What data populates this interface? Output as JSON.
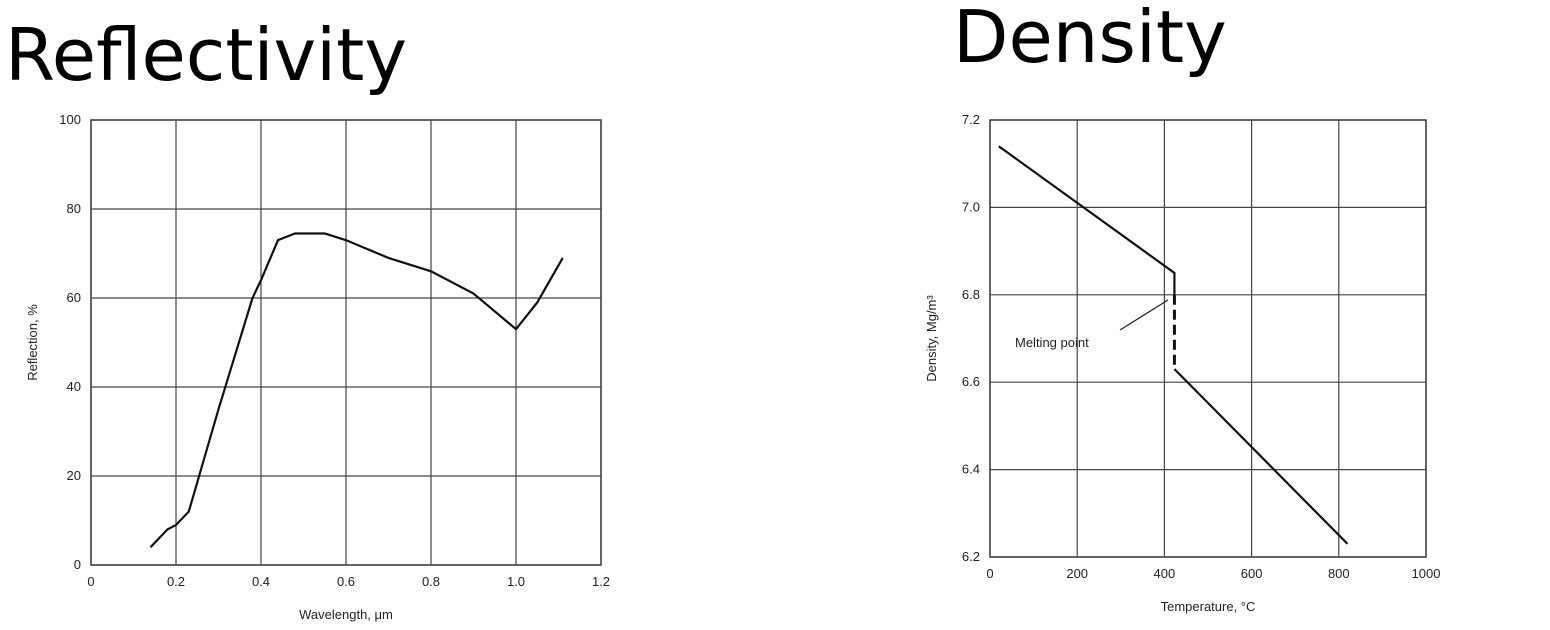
{
  "chart_data": [
    {
      "type": "line",
      "title": "Reflectivity",
      "xlabel": "Wavelength, μm",
      "ylabel": "Reflection, %",
      "xlim": [
        0,
        1.2
      ],
      "ylim": [
        0,
        100
      ],
      "xticks": [
        0,
        0.2,
        0.4,
        0.6,
        0.8,
        {
          "value": 1,
          "label": "1.0"
        },
        1.2
      ],
      "yticks": [
        0,
        20,
        40,
        60,
        80,
        100
      ],
      "grid": true,
      "color": "#111111",
      "series": [
        {
          "x": [
            0.14,
            0.18,
            0.2,
            0.23,
            0.3,
            0.38,
            0.4,
            0.44,
            0.48,
            0.55,
            0.6,
            0.7,
            0.8,
            0.9,
            1.0,
            1.05,
            1.11
          ],
          "values": [
            4,
            8,
            9,
            12,
            35,
            60,
            64,
            73,
            74.5,
            74.5,
            73,
            69,
            66,
            61,
            53,
            59,
            69
          ],
          "style": "solid"
        }
      ]
    },
    {
      "type": "line",
      "title": "Density",
      "xlabel": "Temperature, °C",
      "ylabel": "Density, Mg/m³",
      "xlim": [
        0,
        1000
      ],
      "ylim": [
        6.2,
        7.2
      ],
      "xticks": [
        0,
        200,
        400,
        600,
        800,
        1000
      ],
      "yticks": [
        6.2,
        6.4,
        6.6,
        6.8,
        {
          "value": 7,
          "label": "7.0"
        },
        7.2
      ],
      "grid": true,
      "color": "#111111",
      "series": [
        {
          "x": [
            20,
            423,
            423
          ],
          "values": [
            7.14,
            6.85,
            6.8
          ],
          "style": "solid"
        },
        {
          "x": [
            423,
            423
          ],
          "values": [
            6.8,
            6.63
          ],
          "style": "dashed"
        },
        {
          "x": [
            423,
            820
          ],
          "values": [
            6.63,
            6.23
          ],
          "style": "solid"
        }
      ],
      "annotation": "Melting point"
    }
  ]
}
